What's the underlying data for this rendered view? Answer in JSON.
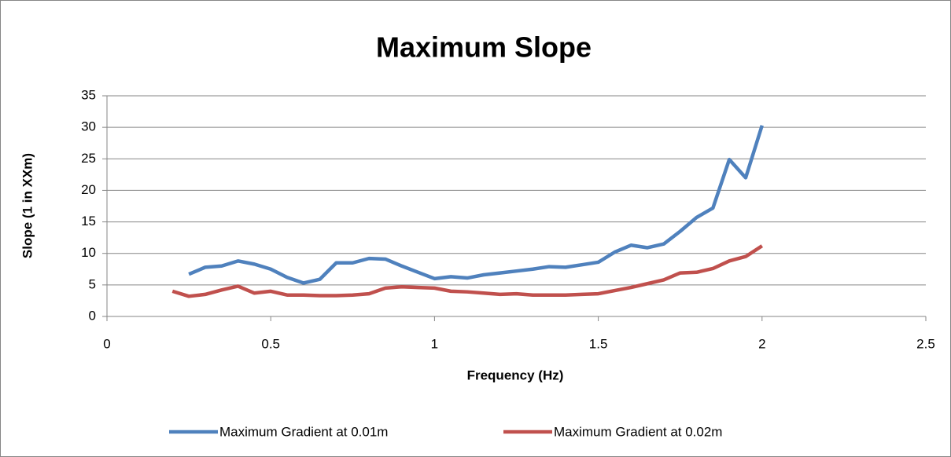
{
  "chart_data": {
    "type": "line",
    "title": "Maximum Slope",
    "x_label": "Frequency (Hz)",
    "y_label": "Slope (1 in XXm)",
    "xlim": [
      0,
      2.5
    ],
    "xticks": [
      0,
      0.5,
      1,
      1.5,
      2,
      2.5
    ],
    "ylim": [
      0,
      35
    ],
    "yticks": [
      0,
      5,
      10,
      15,
      20,
      25,
      30,
      35
    ],
    "grid": true,
    "legend": "bottom",
    "series": [
      {
        "name": "Maximum Gradient at 0.01m",
        "color": "#4f81bd",
        "x": [
          0.25,
          0.3,
          0.35,
          0.4,
          0.45,
          0.5,
          0.55,
          0.6,
          0.65,
          0.7,
          0.75,
          0.8,
          0.85,
          0.9,
          0.95,
          1,
          1.05,
          1.1,
          1.15,
          1.2,
          1.25,
          1.3,
          1.35,
          1.4,
          1.45,
          1.5,
          1.55,
          1.6,
          1.65,
          1.7,
          1.75,
          1.8,
          1.85,
          1.9,
          1.95,
          2
        ],
        "values": [
          6.7,
          7.8,
          8.0,
          8.8,
          8.3,
          7.5,
          6.2,
          5.3,
          5.9,
          8.5,
          8.5,
          9.2,
          9.1,
          8.0,
          7.0,
          6.0,
          6.3,
          6.1,
          6.6,
          6.9,
          7.2,
          7.5,
          7.9,
          7.8,
          8.2,
          8.6,
          10.2,
          11.3,
          10.9,
          11.5,
          13.5,
          15.7,
          17.2,
          24.9,
          22.0,
          30.3
        ]
      },
      {
        "name": "Maximum Gradient at 0.02m",
        "color": "#c0504d",
        "x": [
          0.2,
          0.25,
          0.3,
          0.35,
          0.4,
          0.45,
          0.5,
          0.55,
          0.6,
          0.65,
          0.7,
          0.75,
          0.8,
          0.85,
          0.9,
          0.95,
          1,
          1.05,
          1.1,
          1.15,
          1.2,
          1.25,
          1.3,
          1.35,
          1.4,
          1.45,
          1.5,
          1.55,
          1.6,
          1.65,
          1.7,
          1.75,
          1.8,
          1.85,
          1.9,
          1.95,
          2
        ],
        "values": [
          4.0,
          3.2,
          3.5,
          4.2,
          4.8,
          3.7,
          4.0,
          3.4,
          3.4,
          3.3,
          3.3,
          3.4,
          3.6,
          4.5,
          4.7,
          4.6,
          4.5,
          4.0,
          3.9,
          3.7,
          3.5,
          3.6,
          3.4,
          3.4,
          3.4,
          3.5,
          3.6,
          4.1,
          4.6,
          5.2,
          5.8,
          6.9,
          7.0,
          7.6,
          8.8,
          9.5,
          11.2
        ]
      }
    ]
  }
}
